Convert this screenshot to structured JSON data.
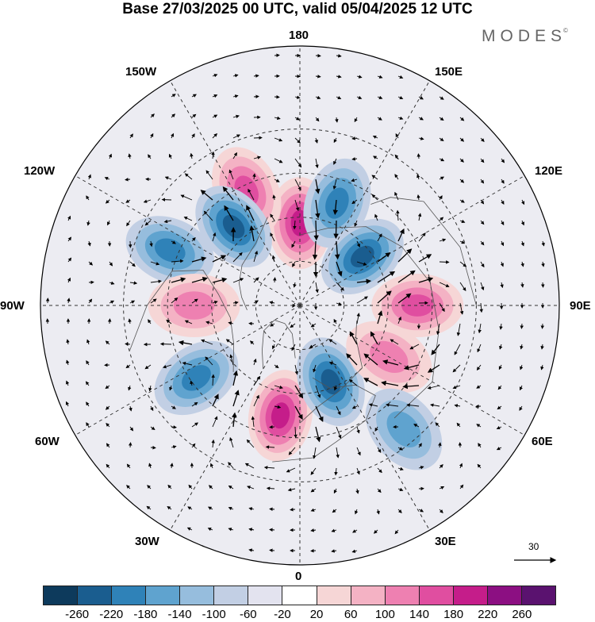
{
  "title": "Base 27/03/2025 00 UTC, valid 05/04/2025 12 UTC",
  "brand": "MODES",
  "brand_mark": "©",
  "longitude_labels": {
    "top": "180",
    "bottom": "0",
    "left": "90W",
    "right": "90E",
    "upper_left_1": "150W",
    "upper_left_2": "120W",
    "lower_left_1": "60W",
    "lower_left_2": "30W",
    "upper_right_1": "150E",
    "upper_right_2": "120E",
    "lower_right_1": "60E",
    "lower_right_2": "30E"
  },
  "reference_vector_label": "30",
  "colorbar": {
    "colors": [
      "#0d3a5c",
      "#1a5d8f",
      "#2f82b8",
      "#5fa3cf",
      "#96bddd",
      "#c2cfe4",
      "#e3e3ef",
      "#ffffff",
      "#f6d6d6",
      "#f4b2c4",
      "#ee80b1",
      "#e04ea0",
      "#c51d8a",
      "#8c0f82",
      "#5a126f"
    ],
    "tick_labels": [
      "-260",
      "-220",
      "-180",
      "-140",
      "-100",
      "-60",
      "-20",
      "20",
      "60",
      "100",
      "140",
      "180",
      "220",
      "260"
    ]
  },
  "anomaly_features": [
    {
      "sign": "positive",
      "strength": 3,
      "lon_deg": 180,
      "lat_deg": 62
    },
    {
      "sign": "positive",
      "strength": 2,
      "lon_deg": 205,
      "lat_deg": 47
    },
    {
      "sign": "negative",
      "strength": 3,
      "lon_deg": 220,
      "lat_deg": 55
    },
    {
      "sign": "negative",
      "strength": 2,
      "lon_deg": 247,
      "lat_deg": 42
    },
    {
      "sign": "negative",
      "strength": 2,
      "lon_deg": 160,
      "lat_deg": 53
    },
    {
      "sign": "negative",
      "strength": 3,
      "lon_deg": 128,
      "lat_deg": 63
    },
    {
      "sign": "positive",
      "strength": 2,
      "lon_deg": 90,
      "lat_deg": 50
    },
    {
      "sign": "positive",
      "strength": 1,
      "lon_deg": 270,
      "lat_deg": 54
    },
    {
      "sign": "negative",
      "strength": 2,
      "lon_deg": 305,
      "lat_deg": 47
    },
    {
      "sign": "positive",
      "strength": 3,
      "lon_deg": 350,
      "lat_deg": 52
    },
    {
      "sign": "negative",
      "strength": 3,
      "lon_deg": 22,
      "lat_deg": 62
    },
    {
      "sign": "positive",
      "strength": 1,
      "lon_deg": 60,
      "lat_deg": 55
    },
    {
      "sign": "negative",
      "strength": 1,
      "lon_deg": 40,
      "lat_deg": 35
    }
  ]
}
